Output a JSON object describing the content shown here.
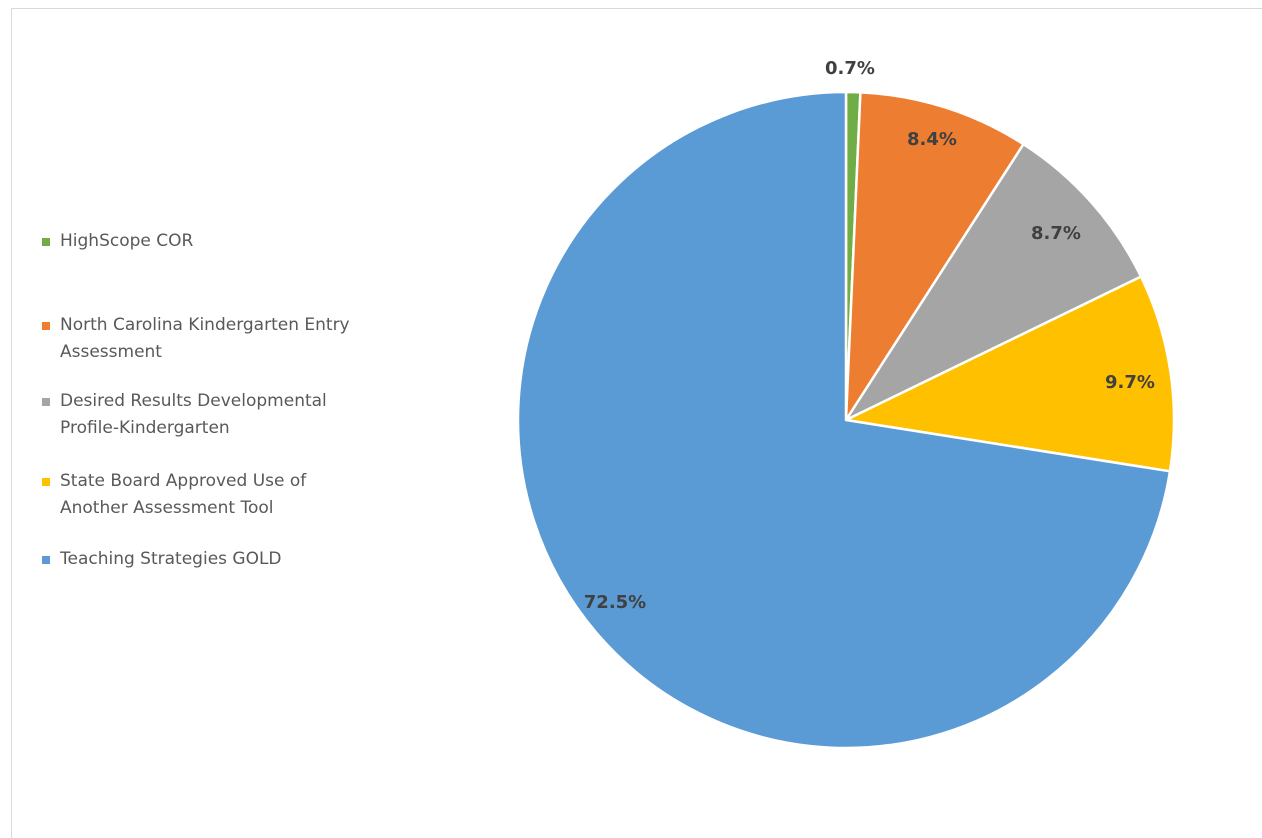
{
  "chart_data": {
    "type": "pie",
    "title": "",
    "legend_position": "left",
    "start_angle_deg": 0,
    "direction": "clockwise",
    "slices": [
      {
        "label": "HighScope COR",
        "value": 0.7,
        "display": "0.7%",
        "color": "#70ad47"
      },
      {
        "label": "North Carolina Kindergarten Entry\nAssessment",
        "value": 8.4,
        "display": "8.4%",
        "color": "#ed7d31"
      },
      {
        "label": "Desired Results Developmental\nProfile-Kindergarten",
        "value": 8.7,
        "display": "8.7%",
        "color": "#a5a5a5"
      },
      {
        "label": "State Board Approved Use of\nAnother Assessment Tool",
        "value": 9.7,
        "display": "9.7%",
        "color": "#ffc000"
      },
      {
        "label": "Teaching Strategies GOLD",
        "value": 72.5,
        "display": "72.5%",
        "color": "#5b9bd5"
      }
    ]
  }
}
